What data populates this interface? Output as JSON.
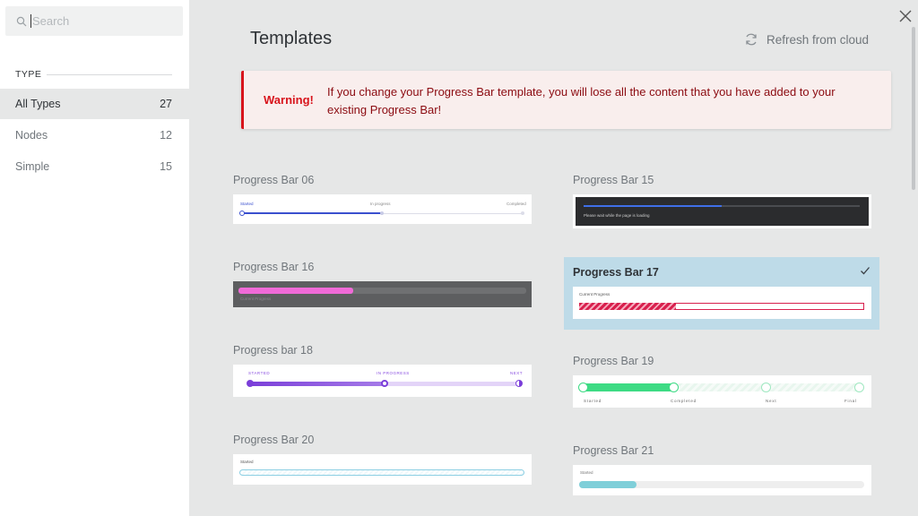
{
  "search": {
    "placeholder": "Search",
    "value": ""
  },
  "sidebar": {
    "type_heading": "TYPE",
    "filters": [
      {
        "label": "All Types",
        "count": "27"
      },
      {
        "label": "Nodes",
        "count": "12"
      },
      {
        "label": "Simple",
        "count": "15"
      }
    ]
  },
  "header": {
    "title": "Templates",
    "refresh_label": "Refresh from cloud"
  },
  "warning": {
    "label": "Warning!",
    "message": "If you change your Progress Bar template, you will lose all the content that you have added to your existing Progress Bar!"
  },
  "templates": [
    {
      "title": "Progress Bar 06",
      "steps": [
        "Started",
        "In progress",
        "Completed"
      ]
    },
    {
      "title": "Progress Bar 15",
      "text": "Please wait while the page is loading",
      "progress": 0.5
    },
    {
      "title": "Progress Bar 16",
      "text": "Current Progress",
      "progress": 0.4
    },
    {
      "title": "Progress Bar 17",
      "text": "Current Progress",
      "progress": 0.34,
      "selected": true
    },
    {
      "title": "Progress bar 18",
      "steps": [
        "STARTED",
        "IN PROGRESS",
        "NEXT"
      ],
      "progress": 0.5
    },
    {
      "title": "Progress Bar 19",
      "steps": [
        "Started",
        "Completed",
        "Next",
        "Final"
      ],
      "progress": 0.33
    },
    {
      "title": "Progress Bar 20",
      "text": "Started"
    },
    {
      "title": "Progress Bar 21",
      "text": "Started",
      "progress": 0.2
    }
  ],
  "colors": {
    "warning_red": "#d8141c",
    "selected_bg": "#bedbe8",
    "pb06_blue": "#3a4fcf",
    "pb15_blue": "#3f6fe8",
    "pb16_pink": "#f06ad8",
    "pb17_red": "#d81f4d",
    "pb18_purple": "#8a4fe0",
    "pb19_green": "#3ddb84",
    "pb21_teal": "#7fcfd9"
  }
}
